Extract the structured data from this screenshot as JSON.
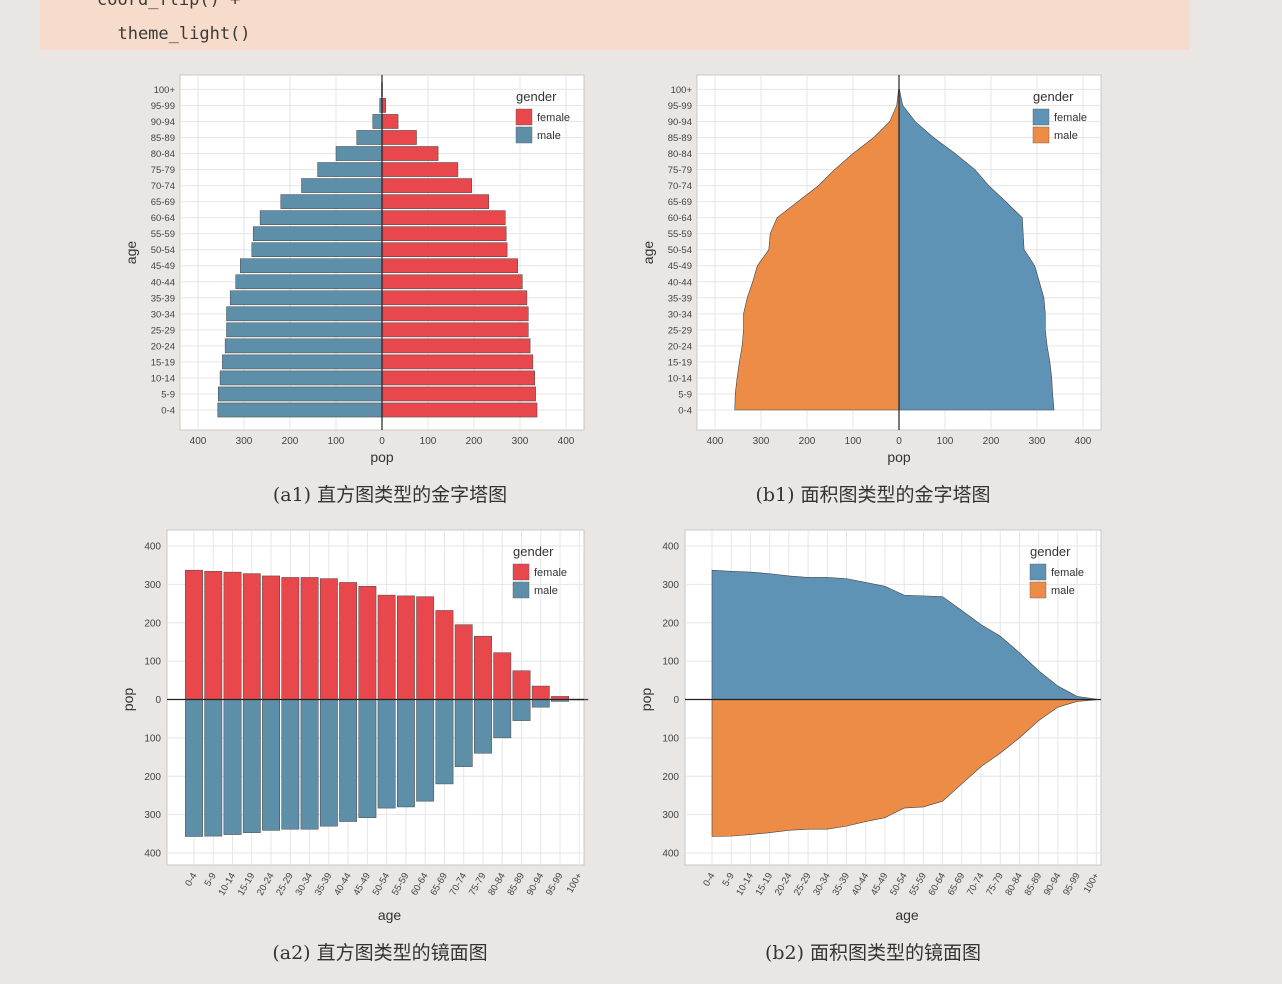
{
  "code": {
    "line1": "coord_flip() +",
    "line2": "  theme_light()"
  },
  "colors": {
    "female_bar": "#e8474b",
    "male_bar": "#5e8fa8",
    "female_area": "#5f93b6",
    "male_area": "#ec8c47",
    "panel_bg": "#ffffff",
    "grid": "#e6e6e6",
    "page_bg": "#eae6e3"
  },
  "captions": {
    "a1": "(a1)  直方图类型的金字塔图",
    "b1": "(b1)  面积图类型的金字塔图",
    "a2": "(a2)  直方图类型的镜面图",
    "b2": "(b2)  面积图类型的镜面图"
  },
  "chart_data": [
    {
      "id": "a1",
      "type": "bar",
      "orientation": "horizontal",
      "xlabel": "pop",
      "ylabel": "age",
      "categories": [
        "0-4",
        "5-9",
        "10-14",
        "15-19",
        "20-24",
        "25-29",
        "30-34",
        "35-39",
        "40-44",
        "45-49",
        "50-54",
        "55-59",
        "60-64",
        "65-69",
        "70-74",
        "75-79",
        "80-84",
        "85-89",
        "90-94",
        "95-99",
        "100+"
      ],
      "series": [
        {
          "name": "female",
          "values": [
            337,
            334,
            332,
            328,
            322,
            318,
            318,
            315,
            305,
            295,
            272,
            270,
            268,
            232,
            195,
            165,
            122,
            75,
            35,
            8,
            1
          ]
        },
        {
          "name": "male",
          "values": [
            -357,
            -356,
            -352,
            -347,
            -341,
            -338,
            -338,
            -330,
            -318,
            -308,
            -283,
            -280,
            -265,
            -220,
            -175,
            -140,
            -100,
            -55,
            -20,
            -5,
            -1
          ]
        }
      ],
      "xlim": [
        -400,
        400
      ],
      "xticks": [
        -400,
        -300,
        -200,
        -100,
        0,
        100,
        200,
        300,
        400
      ],
      "xtick_labels": [
        "400",
        "300",
        "200",
        "100",
        "0",
        "100",
        "200",
        "300",
        "400"
      ],
      "legend": {
        "title": "gender",
        "entries": [
          "female",
          "male"
        ],
        "position": "top-right"
      },
      "grid": true
    },
    {
      "id": "b1",
      "type": "area",
      "orientation": "horizontal",
      "xlabel": "pop",
      "ylabel": "age",
      "categories": [
        "0-4",
        "5-9",
        "10-14",
        "15-19",
        "20-24",
        "25-29",
        "30-34",
        "35-39",
        "40-44",
        "45-49",
        "50-54",
        "55-59",
        "60-64",
        "65-69",
        "70-74",
        "75-79",
        "80-84",
        "85-89",
        "90-94",
        "95-99",
        "100+"
      ],
      "series": [
        {
          "name": "female",
          "values": [
            337,
            334,
            332,
            328,
            322,
            318,
            318,
            315,
            305,
            295,
            272,
            270,
            268,
            232,
            195,
            165,
            122,
            75,
            35,
            8,
            1
          ]
        },
        {
          "name": "male",
          "values": [
            -357,
            -356,
            -352,
            -347,
            -341,
            -338,
            -338,
            -330,
            -318,
            -308,
            -283,
            -280,
            -265,
            -220,
            -175,
            -140,
            -100,
            -55,
            -20,
            -5,
            -1
          ]
        }
      ],
      "xlim": [
        -400,
        400
      ],
      "xticks": [
        -400,
        -300,
        -200,
        -100,
        0,
        100,
        200,
        300,
        400
      ],
      "xtick_labels": [
        "400",
        "300",
        "200",
        "100",
        "0",
        "100",
        "200",
        "300",
        "400"
      ],
      "legend": {
        "title": "gender",
        "entries": [
          "female",
          "male"
        ],
        "position": "top-right"
      },
      "grid": true
    },
    {
      "id": "a2",
      "type": "bar",
      "orientation": "vertical",
      "xlabel": "age",
      "ylabel": "pop",
      "categories": [
        "0-4",
        "5-9",
        "10-14",
        "15-19",
        "20-24",
        "25-29",
        "30-34",
        "35-39",
        "40-44",
        "45-49",
        "50-54",
        "55-59",
        "60-64",
        "65-69",
        "70-74",
        "75-79",
        "80-84",
        "85-89",
        "90-94",
        "95-99",
        "100+"
      ],
      "series": [
        {
          "name": "female",
          "values": [
            337,
            334,
            332,
            328,
            322,
            318,
            318,
            315,
            305,
            295,
            272,
            270,
            268,
            232,
            195,
            165,
            122,
            75,
            35,
            8,
            1
          ]
        },
        {
          "name": "male",
          "values": [
            -357,
            -356,
            -352,
            -347,
            -341,
            -338,
            -338,
            -330,
            -318,
            -308,
            -283,
            -280,
            -265,
            -220,
            -175,
            -140,
            -100,
            -55,
            -20,
            -5,
            -1
          ]
        }
      ],
      "ylim": [
        -400,
        400
      ],
      "yticks": [
        -400,
        -300,
        -200,
        -100,
        0,
        100,
        200,
        300,
        400
      ],
      "ytick_labels": [
        "400",
        "300",
        "200",
        "100",
        "0",
        "100",
        "200",
        "300",
        "400"
      ],
      "legend": {
        "title": "gender",
        "entries": [
          "female",
          "male"
        ],
        "position": "top-right"
      },
      "grid": true
    },
    {
      "id": "b2",
      "type": "area",
      "orientation": "vertical",
      "xlabel": "age",
      "ylabel": "pop",
      "categories": [
        "0-4",
        "5-9",
        "10-14",
        "15-19",
        "20-24",
        "25-29",
        "30-34",
        "35-39",
        "40-44",
        "45-49",
        "50-54",
        "55-59",
        "60-64",
        "65-69",
        "70-74",
        "75-79",
        "80-84",
        "85-89",
        "90-94",
        "95-99",
        "100+"
      ],
      "series": [
        {
          "name": "female",
          "values": [
            337,
            334,
            332,
            328,
            322,
            318,
            318,
            315,
            305,
            295,
            272,
            270,
            268,
            232,
            195,
            165,
            122,
            75,
            35,
            8,
            1
          ]
        },
        {
          "name": "male",
          "values": [
            -357,
            -356,
            -352,
            -347,
            -341,
            -338,
            -338,
            -330,
            -318,
            -308,
            -283,
            -280,
            -265,
            -220,
            -175,
            -140,
            -100,
            -55,
            -20,
            -5,
            -1
          ]
        }
      ],
      "ylim": [
        -400,
        400
      ],
      "yticks": [
        -400,
        -300,
        -200,
        -100,
        0,
        100,
        200,
        300,
        400
      ],
      "ytick_labels": [
        "400",
        "300",
        "200",
        "100",
        "0",
        "100",
        "200",
        "300",
        "400"
      ],
      "legend": {
        "title": "gender",
        "entries": [
          "female",
          "male"
        ],
        "position": "top-right"
      },
      "grid": true
    }
  ]
}
